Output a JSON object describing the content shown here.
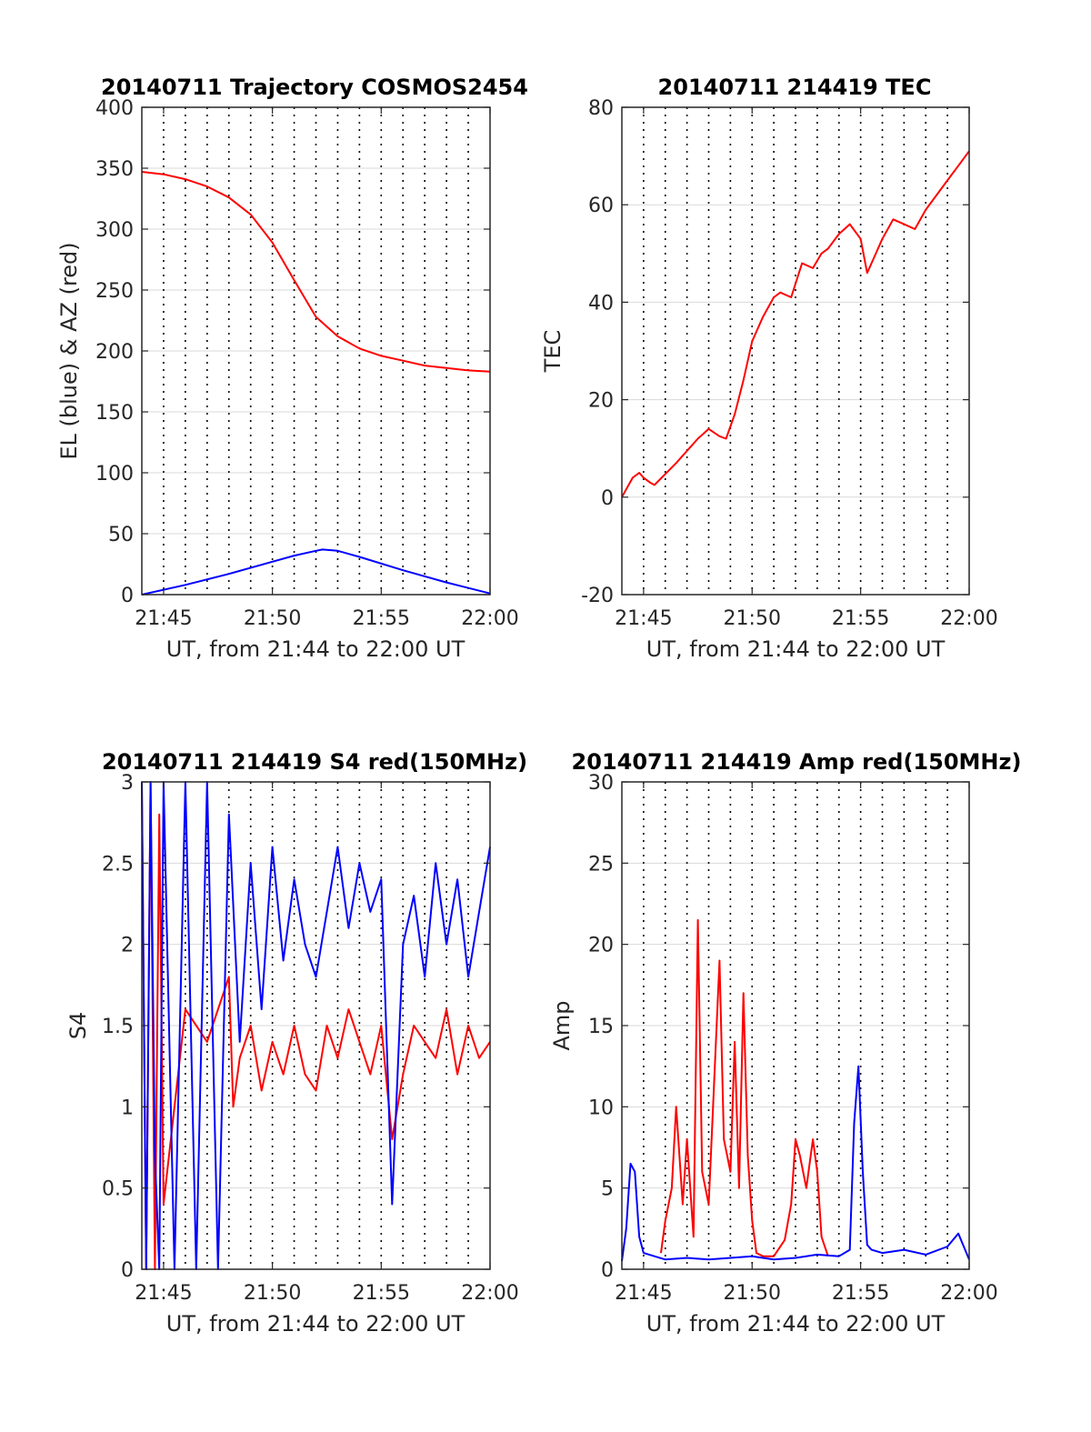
{
  "chart_data": [
    {
      "type": "line",
      "title": "20140711 Trajectory COSMOS2454",
      "xlabel": "UT, from 21:44 to 22:00 UT",
      "ylabel": "EL (blue) & AZ (red)",
      "x_unit": "minutes after 21:44 UT",
      "xlim": [
        0,
        16
      ],
      "ylim": [
        0,
        400
      ],
      "xticks": [
        1,
        6,
        11,
        16
      ],
      "xticklabels": [
        "21:45",
        "21:50",
        "21:55",
        "22:00"
      ],
      "yticks": [
        0,
        50,
        100,
        150,
        200,
        250,
        300,
        350,
        400
      ],
      "yticklabels": [
        "0",
        "50",
        "100",
        "150",
        "200",
        "250",
        "300",
        "350",
        "400"
      ],
      "grid": "y solid, x dotted",
      "series": [
        {
          "name": "AZ",
          "color": "#ff0000",
          "x": [
            0,
            1,
            2,
            3,
            4,
            5,
            6,
            7,
            8,
            9,
            10,
            11,
            12,
            13,
            14,
            15,
            16
          ],
          "y": [
            347,
            345,
            341,
            335,
            326,
            312,
            289,
            258,
            228,
            212,
            202,
            196,
            192,
            188,
            186,
            184,
            183
          ]
        },
        {
          "name": "EL",
          "color": "#0000ff",
          "x": [
            0,
            2,
            4,
            6,
            7,
            8,
            8.3,
            9,
            10,
            12,
            14,
            16
          ],
          "y": [
            0,
            8,
            17,
            27,
            32,
            36,
            37,
            36,
            31,
            20,
            10,
            1
          ]
        }
      ]
    },
    {
      "type": "line",
      "title": "20140711 214419 TEC",
      "xlabel": "UT, from 21:44 to 22:00 UT",
      "ylabel": "TEC",
      "x_unit": "minutes after 21:44 UT",
      "xlim": [
        0,
        16
      ],
      "ylim": [
        -20,
        80
      ],
      "xticks": [
        1,
        6,
        11,
        16
      ],
      "xticklabels": [
        "21:45",
        "21:50",
        "21:55",
        "22:00"
      ],
      "yticks": [
        -20,
        0,
        20,
        40,
        60,
        80
      ],
      "yticklabels": [
        "-20",
        "0",
        "20",
        "40",
        "60",
        "80"
      ],
      "grid": "y solid, x dotted",
      "series": [
        {
          "name": "TEC",
          "color": "#ff0000",
          "x": [
            0,
            0.5,
            0.8,
            1.0,
            1.3,
            1.5,
            2.5,
            3.5,
            4.0,
            4.5,
            4.8,
            5.2,
            5.6,
            6.0,
            6.5,
            7.0,
            7.3,
            7.8,
            8.3,
            8.8,
            9.2,
            9.5,
            10.0,
            10.5,
            11.0,
            11.3,
            11.5,
            12.0,
            12.5,
            13.0,
            13.5,
            14.0,
            14.5,
            15.0,
            15.5,
            16.0
          ],
          "y": [
            0,
            4,
            5,
            4,
            3,
            2.5,
            7,
            12,
            14,
            12.5,
            12,
            17,
            24,
            32,
            37,
            41,
            42,
            41,
            48,
            47,
            50,
            51,
            54,
            56,
            53,
            46,
            48,
            53,
            57,
            56,
            55,
            59,
            62,
            65,
            68,
            71
          ]
        }
      ]
    },
    {
      "type": "line",
      "title": "20140711 214419 S4 red(150MHz)",
      "xlabel": "UT, from 21:44 to 22:00 UT",
      "ylabel": "S4",
      "x_unit": "minutes after 21:44 UT",
      "xlim": [
        0,
        16
      ],
      "ylim": [
        0,
        3
      ],
      "xticks": [
        1,
        6,
        11,
        16
      ],
      "xticklabels": [
        "21:45",
        "21:50",
        "21:55",
        "22:00"
      ],
      "yticks": [
        0,
        0.5,
        1,
        1.5,
        2,
        2.5,
        3
      ],
      "yticklabels": [
        "0",
        "0.5",
        "1",
        "1.5",
        "2",
        "2.5",
        "3"
      ],
      "grid": "y solid, x dotted",
      "series": [
        {
          "color": "#ff0000",
          "x": [
            0.0,
            0.2,
            0.4,
            0.6,
            0.8,
            1.0,
            2.0,
            3.0,
            4.0,
            4.2,
            4.5,
            5.0,
            5.5,
            6.0,
            6.5,
            7.0,
            7.5,
            8.0,
            8.5,
            9.0,
            9.5,
            10.0,
            10.5,
            11.0,
            11.5,
            12.0,
            12.5,
            13.0,
            13.5,
            14.0,
            14.5,
            15.0,
            15.5,
            16.0
          ],
          "y": [
            3,
            0,
            3,
            0,
            2.8,
            0.4,
            1.6,
            1.4,
            1.8,
            1.0,
            1.3,
            1.5,
            1.1,
            1.4,
            1.2,
            1.5,
            1.2,
            1.1,
            1.5,
            1.3,
            1.6,
            1.4,
            1.2,
            1.5,
            0.8,
            1.2,
            1.5,
            1.4,
            1.3,
            1.6,
            1.2,
            1.5,
            1.3,
            1.4
          ]
        },
        {
          "color": "#0000ff",
          "x": [
            0.0,
            0.2,
            0.4,
            0.6,
            0.8,
            1.0,
            1.5,
            2.0,
            2.5,
            3.0,
            3.5,
            4.0,
            4.5,
            5.0,
            5.5,
            6.0,
            6.5,
            7.0,
            7.5,
            8.0,
            8.5,
            9.0,
            9.5,
            10.0,
            10.5,
            11.0,
            11.5,
            12.0,
            12.5,
            13.0,
            13.5,
            14.0,
            14.5,
            15.0,
            15.5,
            16.0
          ],
          "y": [
            3,
            0,
            3,
            0.7,
            0,
            3,
            0,
            3,
            0,
            3,
            0,
            2.8,
            1.4,
            2.5,
            1.6,
            2.6,
            1.9,
            2.4,
            2.0,
            1.8,
            2.2,
            2.6,
            2.1,
            2.5,
            2.2,
            2.4,
            0.4,
            2.0,
            2.3,
            1.8,
            2.5,
            2.0,
            2.4,
            1.8,
            2.2,
            2.6
          ]
        }
      ]
    },
    {
      "type": "line",
      "title": "20140711 214419 Amp red(150MHz)",
      "xlabel": "UT, from 21:44 to 22:00 UT",
      "ylabel": "Amp",
      "x_unit": "minutes after 21:44 UT",
      "xlim": [
        0,
        16
      ],
      "ylim": [
        0,
        30
      ],
      "xticks": [
        1,
        6,
        11,
        16
      ],
      "xticklabels": [
        "21:45",
        "21:50",
        "21:55",
        "22:00"
      ],
      "yticks": [
        0,
        5,
        10,
        15,
        20,
        25,
        30
      ],
      "yticklabels": [
        "0",
        "5",
        "10",
        "15",
        "20",
        "25",
        "30"
      ],
      "grid": "y solid, x dotted",
      "series": [
        {
          "color": "#ff0000",
          "x": [
            1.8,
            2.0,
            2.3,
            2.5,
            2.8,
            3.0,
            3.3,
            3.5,
            3.7,
            4.0,
            4.2,
            4.5,
            4.7,
            5.0,
            5.2,
            5.4,
            5.6,
            5.8,
            6.0,
            6.2,
            6.5,
            7.0,
            7.5,
            7.8,
            8.0,
            8.2,
            8.5,
            8.8,
            9.0,
            9.2,
            9.5
          ],
          "y": [
            1,
            3,
            5,
            10,
            4,
            8,
            2,
            21.5,
            6,
            4,
            10,
            19,
            8,
            6,
            14,
            5,
            17,
            7,
            3,
            1,
            0.8,
            0.8,
            1.8,
            4,
            8,
            7,
            5,
            8,
            6,
            2,
            0.8
          ]
        },
        {
          "color": "#0000ff",
          "x": [
            0.0,
            0.2,
            0.4,
            0.6,
            0.8,
            1.0,
            1.5,
            2.0,
            3.0,
            4.0,
            5.0,
            6.0,
            7.0,
            8.0,
            9.0,
            10.0,
            10.5,
            10.7,
            10.9,
            11.1,
            11.3,
            11.5,
            12.0,
            13.0,
            14.0,
            15.0,
            15.5,
            16.0
          ],
          "y": [
            0.5,
            2.5,
            6.5,
            6,
            2,
            1,
            0.8,
            0.6,
            0.7,
            0.6,
            0.7,
            0.8,
            0.6,
            0.7,
            0.9,
            0.8,
            1.2,
            9,
            12.5,
            6,
            1.5,
            1.2,
            1.0,
            1.2,
            0.9,
            1.4,
            2.2,
            0.6
          ]
        }
      ]
    }
  ]
}
